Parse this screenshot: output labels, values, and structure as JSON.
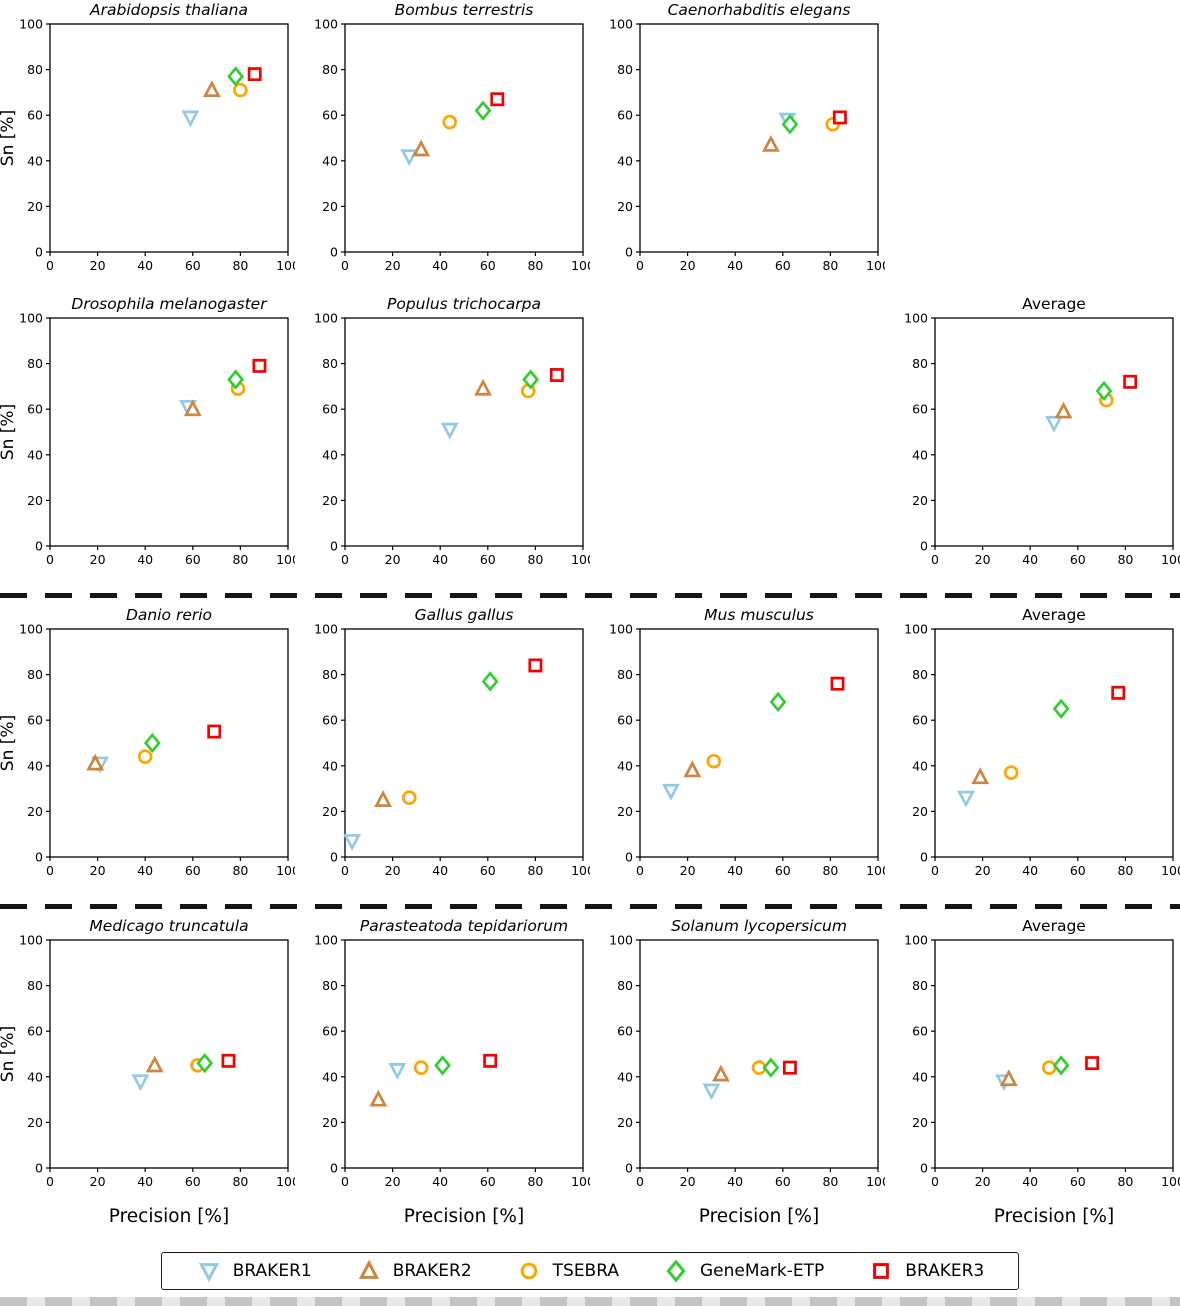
{
  "figure": {
    "ylabel": "Sn [%]",
    "xlabel": "Precision [%]",
    "axis": {
      "xlim": [
        0,
        100
      ],
      "ylim": [
        0,
        100
      ],
      "ticks": [
        0,
        20,
        40,
        60,
        80,
        100
      ]
    }
  },
  "tools": [
    {
      "name": "BRAKER1",
      "marker": "triangle-down",
      "color": "#92C9E6"
    },
    {
      "name": "BRAKER2",
      "marker": "triangle-up",
      "color": "#CD853F"
    },
    {
      "name": "TSEBRA",
      "marker": "circle",
      "color": "#FFA500"
    },
    {
      "name": "GeneMark-ETP",
      "marker": "diamond",
      "color": "#32CD32"
    },
    {
      "name": "BRAKER3",
      "marker": "square",
      "color": "#F50000"
    }
  ],
  "chart_data": [
    {
      "type": "scatter",
      "title": "Arabidopsis thaliana",
      "italic": true,
      "row": 1,
      "col": 1,
      "points": [
        {
          "tool": "BRAKER1",
          "x": 59,
          "y": 59
        },
        {
          "tool": "BRAKER2",
          "x": 68,
          "y": 71
        },
        {
          "tool": "TSEBRA",
          "x": 80,
          "y": 71
        },
        {
          "tool": "GeneMark-ETP",
          "x": 78,
          "y": 77
        },
        {
          "tool": "BRAKER3",
          "x": 86,
          "y": 78
        }
      ]
    },
    {
      "type": "scatter",
      "title": "Bombus terrestris",
      "italic": true,
      "row": 1,
      "col": 2,
      "points": [
        {
          "tool": "BRAKER1",
          "x": 27,
          "y": 42
        },
        {
          "tool": "BRAKER2",
          "x": 32,
          "y": 45
        },
        {
          "tool": "TSEBRA",
          "x": 44,
          "y": 57
        },
        {
          "tool": "GeneMark-ETP",
          "x": 58,
          "y": 62
        },
        {
          "tool": "BRAKER3",
          "x": 64,
          "y": 67
        }
      ]
    },
    {
      "type": "scatter",
      "title": "Caenorhabditis elegans",
      "italic": true,
      "row": 1,
      "col": 3,
      "points": [
        {
          "tool": "BRAKER1",
          "x": 62,
          "y": 58
        },
        {
          "tool": "BRAKER2",
          "x": 55,
          "y": 47
        },
        {
          "tool": "TSEBRA",
          "x": 81,
          "y": 56
        },
        {
          "tool": "GeneMark-ETP",
          "x": 63,
          "y": 56
        },
        {
          "tool": "BRAKER3",
          "x": 84,
          "y": 59
        }
      ]
    },
    {
      "type": "scatter",
      "title": "Drosophila melanogaster",
      "italic": true,
      "row": 2,
      "col": 1,
      "points": [
        {
          "tool": "BRAKER1",
          "x": 58,
          "y": 61
        },
        {
          "tool": "BRAKER2",
          "x": 60,
          "y": 60
        },
        {
          "tool": "TSEBRA",
          "x": 79,
          "y": 69
        },
        {
          "tool": "GeneMark-ETP",
          "x": 78,
          "y": 73
        },
        {
          "tool": "BRAKER3",
          "x": 88,
          "y": 79
        }
      ]
    },
    {
      "type": "scatter",
      "title": "Populus trichocarpa",
      "italic": true,
      "row": 2,
      "col": 2,
      "points": [
        {
          "tool": "BRAKER1",
          "x": 44,
          "y": 51
        },
        {
          "tool": "BRAKER2",
          "x": 58,
          "y": 69
        },
        {
          "tool": "TSEBRA",
          "x": 77,
          "y": 68
        },
        {
          "tool": "GeneMark-ETP",
          "x": 78,
          "y": 73
        },
        {
          "tool": "BRAKER3",
          "x": 89,
          "y": 75
        }
      ]
    },
    {
      "type": "scatter",
      "title": "Average",
      "italic": false,
      "row": 2,
      "col": 4,
      "points": [
        {
          "tool": "BRAKER1",
          "x": 50,
          "y": 54
        },
        {
          "tool": "BRAKER2",
          "x": 54,
          "y": 59
        },
        {
          "tool": "TSEBRA",
          "x": 72,
          "y": 64
        },
        {
          "tool": "GeneMark-ETP",
          "x": 71,
          "y": 68
        },
        {
          "tool": "BRAKER3",
          "x": 82,
          "y": 72
        }
      ]
    },
    {
      "type": "scatter",
      "title": "Danio rerio",
      "italic": true,
      "row": 3,
      "col": 1,
      "points": [
        {
          "tool": "BRAKER1",
          "x": 21,
          "y": 41
        },
        {
          "tool": "BRAKER2",
          "x": 19,
          "y": 41
        },
        {
          "tool": "TSEBRA",
          "x": 40,
          "y": 44
        },
        {
          "tool": "GeneMark-ETP",
          "x": 43,
          "y": 50
        },
        {
          "tool": "BRAKER3",
          "x": 69,
          "y": 55
        }
      ]
    },
    {
      "type": "scatter",
      "title": "Gallus gallus",
      "italic": true,
      "row": 3,
      "col": 2,
      "points": [
        {
          "tool": "BRAKER1",
          "x": 3,
          "y": 7
        },
        {
          "tool": "BRAKER2",
          "x": 16,
          "y": 25
        },
        {
          "tool": "TSEBRA",
          "x": 27,
          "y": 26
        },
        {
          "tool": "GeneMark-ETP",
          "x": 61,
          "y": 77
        },
        {
          "tool": "BRAKER3",
          "x": 80,
          "y": 84
        }
      ]
    },
    {
      "type": "scatter",
      "title": "Mus musculus",
      "italic": true,
      "row": 3,
      "col": 3,
      "points": [
        {
          "tool": "BRAKER1",
          "x": 13,
          "y": 29
        },
        {
          "tool": "BRAKER2",
          "x": 22,
          "y": 38
        },
        {
          "tool": "TSEBRA",
          "x": 31,
          "y": 42
        },
        {
          "tool": "GeneMark-ETP",
          "x": 58,
          "y": 68
        },
        {
          "tool": "BRAKER3",
          "x": 83,
          "y": 76
        }
      ]
    },
    {
      "type": "scatter",
      "title": "Average",
      "italic": false,
      "row": 3,
      "col": 4,
      "points": [
        {
          "tool": "BRAKER1",
          "x": 13,
          "y": 26
        },
        {
          "tool": "BRAKER2",
          "x": 19,
          "y": 35
        },
        {
          "tool": "TSEBRA",
          "x": 32,
          "y": 37
        },
        {
          "tool": "GeneMark-ETP",
          "x": 53,
          "y": 65
        },
        {
          "tool": "BRAKER3",
          "x": 77,
          "y": 72
        }
      ]
    },
    {
      "type": "scatter",
      "title": "Medicago truncatula",
      "italic": true,
      "row": 4,
      "col": 1,
      "points": [
        {
          "tool": "BRAKER1",
          "x": 38,
          "y": 38
        },
        {
          "tool": "BRAKER2",
          "x": 44,
          "y": 45
        },
        {
          "tool": "TSEBRA",
          "x": 62,
          "y": 45
        },
        {
          "tool": "GeneMark-ETP",
          "x": 65,
          "y": 46
        },
        {
          "tool": "BRAKER3",
          "x": 75,
          "y": 47
        }
      ]
    },
    {
      "type": "scatter",
      "title": "Parasteatoda tepidariorum",
      "italic": true,
      "row": 4,
      "col": 2,
      "points": [
        {
          "tool": "BRAKER1",
          "x": 22,
          "y": 43
        },
        {
          "tool": "BRAKER2",
          "x": 14,
          "y": 30
        },
        {
          "tool": "TSEBRA",
          "x": 32,
          "y": 44
        },
        {
          "tool": "GeneMark-ETP",
          "x": 41,
          "y": 45
        },
        {
          "tool": "BRAKER3",
          "x": 61,
          "y": 47
        }
      ]
    },
    {
      "type": "scatter",
      "title": "Solanum lycopersicum",
      "italic": true,
      "row": 4,
      "col": 3,
      "points": [
        {
          "tool": "BRAKER1",
          "x": 30,
          "y": 34
        },
        {
          "tool": "BRAKER2",
          "x": 34,
          "y": 41
        },
        {
          "tool": "TSEBRA",
          "x": 50,
          "y": 44
        },
        {
          "tool": "GeneMark-ETP",
          "x": 55,
          "y": 44
        },
        {
          "tool": "BRAKER3",
          "x": 63,
          "y": 44
        }
      ]
    },
    {
      "type": "scatter",
      "title": "Average",
      "italic": false,
      "row": 4,
      "col": 4,
      "points": [
        {
          "tool": "BRAKER1",
          "x": 29,
          "y": 38
        },
        {
          "tool": "BRAKER2",
          "x": 31,
          "y": 39
        },
        {
          "tool": "TSEBRA",
          "x": 48,
          "y": 44
        },
        {
          "tool": "GeneMark-ETP",
          "x": 53,
          "y": 45
        },
        {
          "tool": "BRAKER3",
          "x": 66,
          "y": 46
        }
      ]
    }
  ]
}
